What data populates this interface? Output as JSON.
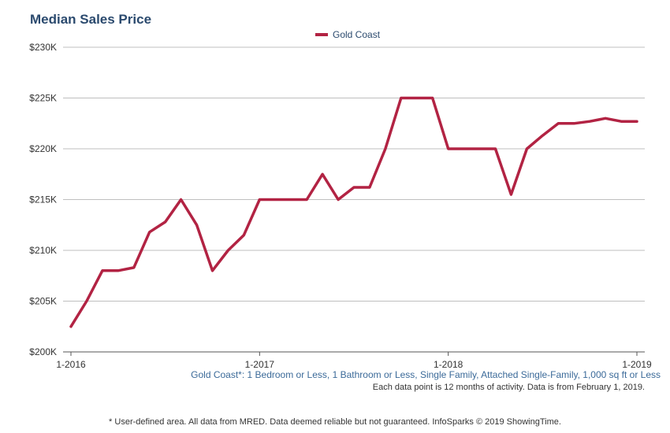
{
  "chart_data": {
    "type": "line",
    "title": "Median Sales Price",
    "x": [
      "1-2016",
      "2-2016",
      "3-2016",
      "4-2016",
      "5-2016",
      "6-2016",
      "7-2016",
      "8-2016",
      "9-2016",
      "10-2016",
      "11-2016",
      "12-2016",
      "1-2017",
      "2-2017",
      "3-2017",
      "4-2017",
      "5-2017",
      "6-2017",
      "7-2017",
      "8-2017",
      "9-2017",
      "10-2017",
      "11-2017",
      "12-2017",
      "1-2018",
      "2-2018",
      "3-2018",
      "4-2018",
      "5-2018",
      "6-2018",
      "7-2018",
      "8-2018",
      "9-2018",
      "10-2018",
      "11-2018",
      "12-2018",
      "1-2019"
    ],
    "series": [
      {
        "name": "Gold Coast",
        "color": "#b22343",
        "values": [
          202500,
          205000,
          208000,
          208000,
          208300,
          211800,
          212800,
          215000,
          212500,
          208000,
          210000,
          211500,
          215000,
          215000,
          215000,
          215000,
          217500,
          215000,
          216200,
          216200,
          220000,
          225000,
          225000,
          225000,
          220000,
          220000,
          220000,
          220000,
          215500,
          220000,
          221300,
          222500,
          222500,
          222700,
          223000,
          222700,
          222700
        ]
      }
    ],
    "ylim": [
      200000,
      230000
    ],
    "y_ticks": [
      "$200K",
      "$205K",
      "$210K",
      "$215K",
      "$220K",
      "$225K",
      "$230K"
    ],
    "x_ticks": [
      {
        "label": "1-2016",
        "index": 0
      },
      {
        "label": "1-2017",
        "index": 12
      },
      {
        "label": "1-2018",
        "index": 24
      },
      {
        "label": "1-2019",
        "index": 36
      }
    ],
    "grid": true,
    "legend": "top-center"
  },
  "subtitle": "Gold Coast*: 1 Bedroom or Less, 1 Bathroom or Less, Single Family, Attached Single-Family, 1,000 sq ft or Less",
  "note": "Each data point is 12 months of activity. Data is from February 1, 2019.",
  "footer": "* User-defined area. All data from MRED. Data deemed reliable but not guaranteed. InfoSparks © 2019 ShowingTime."
}
